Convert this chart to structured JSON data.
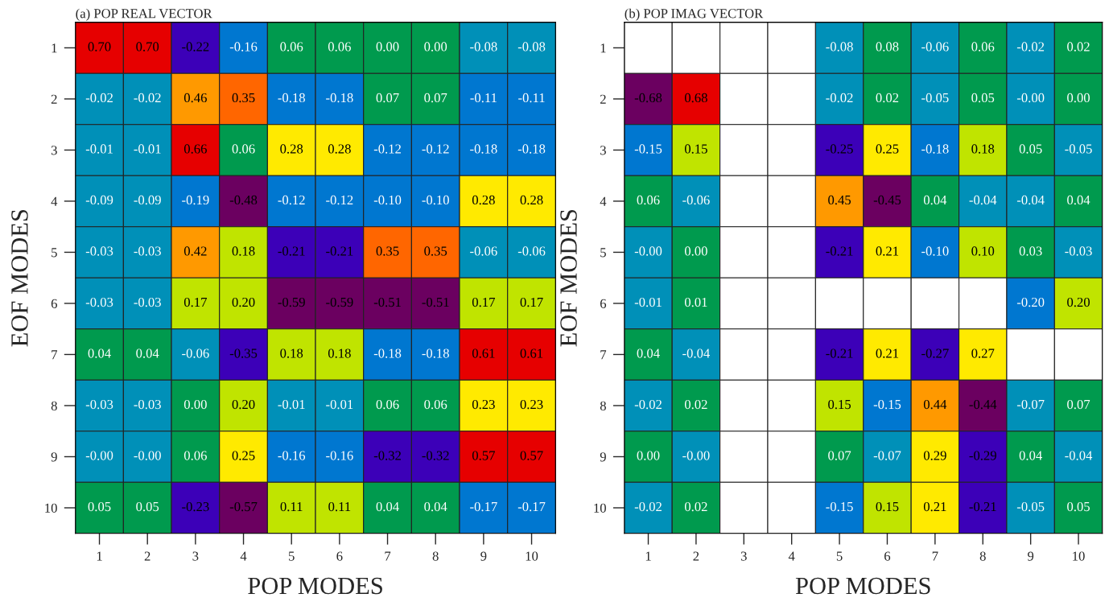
{
  "chart_data": [
    {
      "type": "heatmap",
      "title": "(a) POP REAL VECTOR",
      "xlabel": "POP MODES",
      "ylabel": "EOF MODES",
      "data_labels": true,
      "cell_labels": [
        [
          "0.70",
          "0.70",
          "-0.22",
          "-0.16",
          "0.06",
          "0.06",
          "0.00",
          "0.00",
          "-0.08",
          "-0.08"
        ],
        [
          "-0.02",
          "-0.02",
          "0.46",
          "0.35",
          "-0.18",
          "-0.18",
          "0.07",
          "0.07",
          "-0.11",
          "-0.11"
        ],
        [
          "-0.01",
          "-0.01",
          "0.66",
          "0.06",
          "0.28",
          "0.28",
          "-0.12",
          "-0.12",
          "-0.18",
          "-0.18"
        ],
        [
          "-0.09",
          "-0.09",
          "-0.19",
          "-0.48",
          "-0.12",
          "-0.12",
          "-0.10",
          "-0.10",
          "0.28",
          "0.28"
        ],
        [
          "-0.03",
          "-0.03",
          "0.42",
          "0.18",
          "-0.21",
          "-0.21",
          "0.35",
          "0.35",
          "-0.06",
          "-0.06"
        ],
        [
          "-0.03",
          "-0.03",
          "0.17",
          "0.20",
          "-0.59",
          "-0.59",
          "-0.51",
          "-0.51",
          "0.17",
          "0.17"
        ],
        [
          "0.04",
          "0.04",
          "-0.06",
          "-0.35",
          "0.18",
          "0.18",
          "-0.18",
          "-0.18",
          "0.61",
          "0.61"
        ],
        [
          "-0.03",
          "-0.03",
          "0.00",
          "0.20",
          "-0.01",
          "-0.01",
          "0.06",
          "0.06",
          "0.23",
          "0.23"
        ],
        [
          "-0.00",
          "-0.00",
          "0.06",
          "0.25",
          "-0.16",
          "-0.16",
          "-0.32",
          "-0.32",
          "0.57",
          "0.57"
        ],
        [
          "0.05",
          "0.05",
          "-0.23",
          "-0.57",
          "0.11",
          "0.11",
          "0.04",
          "0.04",
          "-0.17",
          "-0.17"
        ]
      ],
      "categories": [
        "1",
        "2",
        "3",
        "4",
        "5",
        "6",
        "7",
        "8",
        "9",
        "10"
      ],
      "y_categories": [
        "1",
        "2",
        "3",
        "4",
        "5",
        "6",
        "7",
        "8",
        "9",
        "10"
      ],
      "cells": [
        [
          0.7,
          0.7,
          -0.22,
          -0.16,
          0.06,
          0.06,
          0.0,
          0.0,
          -0.08,
          -0.08
        ],
        [
          -0.02,
          -0.02,
          0.46,
          0.35,
          -0.18,
          -0.18,
          0.07,
          0.07,
          -0.11,
          -0.11
        ],
        [
          -0.01,
          -0.01,
          0.66,
          0.06,
          0.28,
          0.28,
          -0.12,
          -0.12,
          -0.18,
          -0.18
        ],
        [
          -0.09,
          -0.09,
          -0.19,
          -0.48,
          -0.12,
          -0.12,
          -0.1,
          -0.1,
          0.28,
          0.28
        ],
        [
          -0.03,
          -0.03,
          0.42,
          0.18,
          -0.21,
          -0.21,
          0.35,
          0.35,
          -0.06,
          -0.06
        ],
        [
          -0.03,
          -0.03,
          0.17,
          0.2,
          -0.59,
          -0.59,
          -0.51,
          -0.51,
          0.17,
          0.17
        ],
        [
          0.04,
          0.04,
          -0.06,
          -0.35,
          0.18,
          0.18,
          -0.18,
          -0.18,
          0.61,
          0.61
        ],
        [
          -0.03,
          -0.03,
          0.0,
          0.2,
          -0.01,
          -0.01,
          0.06,
          0.06,
          0.23,
          0.23
        ],
        [
          -0.0,
          -0.0,
          0.06,
          0.25,
          -0.16,
          -0.16,
          -0.32,
          -0.32,
          0.57,
          0.57
        ],
        [
          0.05,
          0.05,
          -0.23,
          -0.57,
          0.11,
          0.11,
          0.04,
          0.04,
          -0.17,
          -0.17
        ]
      ],
      "colors": [
        [
          "#e60000",
          "#e60000",
          "#3c00b8",
          "#0077d0",
          "#009a4e",
          "#009a4e",
          "#009a4e",
          "#009a4e",
          "#0090b8",
          "#0090b8"
        ],
        [
          "#0090b8",
          "#0090b8",
          "#ff9900",
          "#ff6600",
          "#0077d0",
          "#0077d0",
          "#009a4e",
          "#009a4e",
          "#0077d0",
          "#0077d0"
        ],
        [
          "#0090b8",
          "#0090b8",
          "#e60000",
          "#009a4e",
          "#ffea00",
          "#ffea00",
          "#0077d0",
          "#0077d0",
          "#0077d0",
          "#0077d0"
        ],
        [
          "#0090b8",
          "#0090b8",
          "#0077d0",
          "#6b0060",
          "#0077d0",
          "#0077d0",
          "#0077d0",
          "#0077d0",
          "#ffea00",
          "#ffea00"
        ],
        [
          "#0090b8",
          "#0090b8",
          "#ff9900",
          "#c0e400",
          "#3c00b8",
          "#3c00b8",
          "#ff6600",
          "#ff6600",
          "#0090b8",
          "#0090b8"
        ],
        [
          "#0090b8",
          "#0090b8",
          "#c0e400",
          "#c0e400",
          "#6b0060",
          "#6b0060",
          "#6b0060",
          "#6b0060",
          "#c0e400",
          "#c0e400"
        ],
        [
          "#009a4e",
          "#009a4e",
          "#0090b8",
          "#3c00b8",
          "#c0e400",
          "#c0e400",
          "#0077d0",
          "#0077d0",
          "#e60000",
          "#e60000"
        ],
        [
          "#0090b8",
          "#0090b8",
          "#009a4e",
          "#c0e400",
          "#0090b8",
          "#0090b8",
          "#009a4e",
          "#009a4e",
          "#ffea00",
          "#ffea00"
        ],
        [
          "#0090b8",
          "#0090b8",
          "#009a4e",
          "#ffea00",
          "#0077d0",
          "#0077d0",
          "#3c00b8",
          "#3c00b8",
          "#e60000",
          "#e60000"
        ],
        [
          "#009a4e",
          "#009a4e",
          "#3c00b8",
          "#6b0060",
          "#c0e400",
          "#c0e400",
          "#009a4e",
          "#009a4e",
          "#0077d0",
          "#0077d0"
        ]
      ]
    },
    {
      "type": "heatmap",
      "title": "(b) POP IMAG VECTOR",
      "xlabel": "POP MODES",
      "ylabel": "EOF MODES",
      "data_labels": true,
      "cell_labels": [
        [
          null,
          null,
          null,
          null,
          "-0.08",
          "0.08",
          "-0.06",
          "0.06",
          "-0.02",
          "0.02"
        ],
        [
          "-0.68",
          "0.68",
          null,
          null,
          "-0.02",
          "0.02",
          "-0.05",
          "0.05",
          "-0.00",
          "0.00"
        ],
        [
          "-0.15",
          "0.15",
          null,
          null,
          "-0.25",
          "0.25",
          "-0.18",
          "0.18",
          "0.05",
          "-0.05"
        ],
        [
          "0.06",
          "-0.06",
          null,
          null,
          "0.45",
          "-0.45",
          "0.04",
          "-0.04",
          "-0.04",
          "0.04"
        ],
        [
          "-0.00",
          "0.00",
          null,
          null,
          "-0.21",
          "0.21",
          "-0.10",
          "0.10",
          "0.03",
          "-0.03"
        ],
        [
          "-0.01",
          "0.01",
          null,
          null,
          null,
          null,
          null,
          null,
          "-0.20",
          "0.20"
        ],
        [
          "0.04",
          "-0.04",
          null,
          null,
          "-0.21",
          "0.21",
          "-0.27",
          "0.27",
          null,
          null
        ],
        [
          "-0.02",
          "0.02",
          null,
          null,
          "0.15",
          "-0.15",
          "0.44",
          "-0.44",
          "-0.07",
          "0.07"
        ],
        [
          "0.00",
          "-0.00",
          null,
          null,
          "0.07",
          "-0.07",
          "0.29",
          "-0.29",
          "0.04",
          "-0.04"
        ],
        [
          "-0.02",
          "0.02",
          null,
          null,
          "-0.15",
          "0.15",
          "0.21",
          "-0.21",
          "-0.05",
          "0.05"
        ]
      ],
      "categories": [
        "1",
        "2",
        "3",
        "4",
        "5",
        "6",
        "7",
        "8",
        "9",
        "10"
      ],
      "y_categories": [
        "1",
        "2",
        "3",
        "4",
        "5",
        "6",
        "7",
        "8",
        "9",
        "10"
      ],
      "cells": [
        [
          null,
          null,
          null,
          null,
          -0.08,
          0.08,
          -0.06,
          0.06,
          -0.02,
          0.02
        ],
        [
          -0.68,
          0.68,
          null,
          null,
          -0.02,
          0.02,
          -0.05,
          0.05,
          -0.0,
          0.0
        ],
        [
          -0.15,
          0.15,
          null,
          null,
          -0.25,
          0.25,
          -0.18,
          0.18,
          0.05,
          -0.05
        ],
        [
          0.06,
          -0.06,
          null,
          null,
          0.45,
          -0.45,
          0.04,
          -0.04,
          -0.04,
          0.04
        ],
        [
          -0.0,
          0.0,
          null,
          null,
          -0.21,
          0.21,
          -0.1,
          0.1,
          0.03,
          -0.03
        ],
        [
          -0.01,
          0.01,
          null,
          null,
          null,
          null,
          null,
          null,
          -0.2,
          0.2
        ],
        [
          0.04,
          -0.04,
          null,
          null,
          -0.21,
          0.21,
          -0.27,
          0.27,
          null,
          null
        ],
        [
          -0.02,
          0.02,
          null,
          null,
          0.15,
          -0.15,
          0.44,
          -0.44,
          -0.07,
          0.07
        ],
        [
          0.0,
          -0.0,
          null,
          null,
          0.07,
          -0.07,
          0.29,
          -0.29,
          0.04,
          -0.04
        ],
        [
          -0.02,
          0.02,
          null,
          null,
          -0.15,
          0.15,
          0.21,
          -0.21,
          -0.05,
          0.05
        ]
      ],
      "colors": [
        [
          null,
          null,
          null,
          null,
          "#0090b8",
          "#009a4e",
          "#0090b8",
          "#009a4e",
          "#0090b8",
          "#009a4e"
        ],
        [
          "#6b0060",
          "#e60000",
          null,
          null,
          "#0090b8",
          "#009a4e",
          "#0090b8",
          "#009a4e",
          "#0090b8",
          "#009a4e"
        ],
        [
          "#0077d0",
          "#c0e400",
          null,
          null,
          "#3c00b8",
          "#ffea00",
          "#0077d0",
          "#c0e400",
          "#009a4e",
          "#0090b8"
        ],
        [
          "#009a4e",
          "#0090b8",
          null,
          null,
          "#ff9900",
          "#6b0060",
          "#009a4e",
          "#0090b8",
          "#0090b8",
          "#009a4e"
        ],
        [
          "#0090b8",
          "#009a4e",
          null,
          null,
          "#3c00b8",
          "#ffea00",
          "#0077d0",
          "#c0e400",
          "#009a4e",
          "#0090b8"
        ],
        [
          "#0090b8",
          "#009a4e",
          null,
          null,
          null,
          null,
          null,
          null,
          "#0077d0",
          "#c0e400"
        ],
        [
          "#009a4e",
          "#0090b8",
          null,
          null,
          "#3c00b8",
          "#ffea00",
          "#3c00b8",
          "#ffea00",
          null,
          null
        ],
        [
          "#0090b8",
          "#009a4e",
          null,
          null,
          "#c0e400",
          "#0077d0",
          "#ff9900",
          "#6b0060",
          "#0090b8",
          "#009a4e"
        ],
        [
          "#009a4e",
          "#0090b8",
          null,
          null,
          "#009a4e",
          "#0090b8",
          "#ffea00",
          "#3c00b8",
          "#009a4e",
          "#0090b8"
        ],
        [
          "#0090b8",
          "#009a4e",
          null,
          null,
          "#0077d0",
          "#c0e400",
          "#ffea00",
          "#3c00b8",
          "#0090b8",
          "#009a4e"
        ]
      ]
    }
  ]
}
